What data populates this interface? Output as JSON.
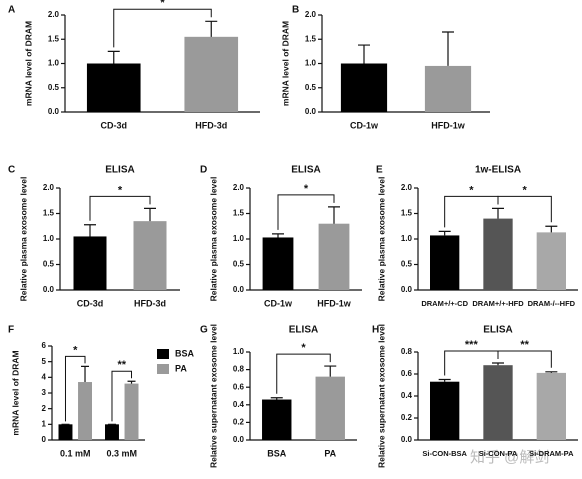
{
  "chart_data": [
    {
      "type": "bar",
      "panel": "A",
      "ylabel": "mRNA level of DRAM",
      "categories": [
        "CD-3d",
        "HFD-3d"
      ],
      "values": [
        1.0,
        1.55
      ],
      "errors": [
        0.25,
        0.32
      ],
      "colors": [
        "#000000",
        "#9a9a9a"
      ],
      "ylim": [
        0,
        2
      ],
      "yticks": [
        {
          "value": 0,
          "label": "0.0"
        },
        0.5,
        {
          "value": 1,
          "label": "1.0"
        },
        1.5,
        {
          "value": 2,
          "label": "2.0"
        }
      ],
      "significance": [
        {
          "label": "*",
          "from": 0,
          "to": 1
        }
      ]
    },
    {
      "type": "bar",
      "panel": "B",
      "ylabel": "mRNA level of DRAM",
      "categories": [
        "CD-1w",
        "HFD-1w"
      ],
      "values": [
        1.0,
        0.95
      ],
      "errors": [
        0.38,
        0.7
      ],
      "colors": [
        "#000000",
        "#9a9a9a"
      ],
      "ylim": [
        0,
        2
      ],
      "yticks": [
        {
          "value": 0,
          "label": "0.0"
        },
        0.5,
        {
          "value": 1,
          "label": "1.0"
        },
        1.5,
        {
          "value": 2,
          "label": "2.0"
        }
      ],
      "significance": []
    },
    {
      "type": "bar",
      "panel": "C",
      "title": "ELISA",
      "ylabel": "Relative plasma exosome level",
      "categories": [
        "CD-3d",
        "HFD-3d"
      ],
      "values": [
        1.05,
        1.35
      ],
      "errors": [
        0.23,
        0.25
      ],
      "colors": [
        "#000000",
        "#9a9a9a"
      ],
      "ylim": [
        0,
        2
      ],
      "yticks": [
        {
          "value": 0,
          "label": "0.0"
        },
        0.5,
        {
          "value": 1,
          "label": "1.0"
        },
        1.5,
        {
          "value": 2,
          "label": "2.0"
        }
      ],
      "significance": [
        {
          "label": "*",
          "from": 0,
          "to": 1
        }
      ]
    },
    {
      "type": "bar",
      "panel": "D",
      "title": "ELISA",
      "ylabel": "Relative plasma exosome level",
      "categories": [
        "CD-1w",
        "HFD-1w"
      ],
      "values": [
        1.03,
        1.3
      ],
      "errors": [
        0.07,
        0.33
      ],
      "colors": [
        "#000000",
        "#9a9a9a"
      ],
      "ylim": [
        0,
        2
      ],
      "yticks": [
        {
          "value": 0,
          "label": "0.0"
        },
        0.5,
        {
          "value": 1,
          "label": "1.0"
        },
        1.5,
        {
          "value": 2,
          "label": "2.0"
        }
      ],
      "significance": [
        {
          "label": "*",
          "from": 0,
          "to": 1
        }
      ]
    },
    {
      "type": "bar",
      "panel": "E",
      "title": "1w-ELISA",
      "ylabel": "Relative plasma exosome level",
      "categories": [
        "DRAM+/+-CD",
        "DRAM+/+-HFD",
        "DRAM-/--HFD"
      ],
      "values": [
        1.07,
        1.4,
        1.13
      ],
      "errors": [
        0.08,
        0.2,
        0.12
      ],
      "colors": [
        "#000000",
        "#555555",
        "#a8a8a8"
      ],
      "ylim": [
        0,
        2
      ],
      "yticks": [
        {
          "value": 0,
          "label": "0.0"
        },
        0.5,
        {
          "value": 1,
          "label": "1.0"
        },
        1.5,
        {
          "value": 2,
          "label": "2.0"
        }
      ],
      "significance": [
        {
          "label": "*",
          "from": 0,
          "to": 1
        },
        {
          "label": "*",
          "from": 1,
          "to": 2
        }
      ]
    },
    {
      "type": "bar",
      "panel": "F",
      "ylabel": "mRNA level of DRAM",
      "categories": [
        "0.1 mM",
        "0.3 mM"
      ],
      "series": [
        {
          "name": "BSA",
          "color": "#000000",
          "values": [
            1,
            1
          ],
          "errors": [
            0,
            0
          ]
        },
        {
          "name": "PA",
          "color": "#9a9a9a",
          "values": [
            3.7,
            3.6
          ],
          "errors": [
            1.0,
            0.15
          ]
        }
      ],
      "ylim": [
        0,
        6
      ],
      "yticks": [
        0,
        1,
        2,
        3,
        4,
        5,
        6
      ],
      "significance": [
        {
          "label": "*",
          "category": 0
        },
        {
          "label": "**",
          "category": 1
        }
      ]
    },
    {
      "type": "bar",
      "panel": "G",
      "title": "ELISA",
      "ylabel": "Relative supernatant exosome level",
      "categories": [
        "BSA",
        "PA"
      ],
      "values": [
        0.46,
        0.72
      ],
      "errors": [
        0.02,
        0.12
      ],
      "colors": [
        "#000000",
        "#9a9a9a"
      ],
      "ylim": [
        0,
        1
      ],
      "yticks": [
        {
          "value": 0,
          "label": "0.0"
        },
        0.2,
        0.4,
        0.6,
        0.8,
        {
          "value": 1,
          "label": "1.0"
        }
      ],
      "significance": [
        {
          "label": "*",
          "from": 0,
          "to": 1
        }
      ]
    },
    {
      "type": "bar",
      "panel": "H",
      "title": "ELISA",
      "ylabel": "Relative supernatant exosome level",
      "categories": [
        "Si-CON-BSA",
        "Si-CON-PA",
        "Si-DRAM-PA"
      ],
      "values": [
        0.53,
        0.68,
        0.61
      ],
      "errors": [
        0.02,
        0.02,
        0.01
      ],
      "colors": [
        "#000000",
        "#555555",
        "#a8a8a8"
      ],
      "ylim": [
        0,
        0.8
      ],
      "yticks": [
        {
          "value": 0,
          "label": "0.0"
        },
        0.2,
        0.4,
        0.6,
        0.8
      ],
      "significance": [
        {
          "label": "***",
          "from": 0,
          "to": 1
        },
        {
          "label": "**",
          "from": 1,
          "to": 2
        }
      ]
    }
  ],
  "watermark": "知乎 @解剑"
}
